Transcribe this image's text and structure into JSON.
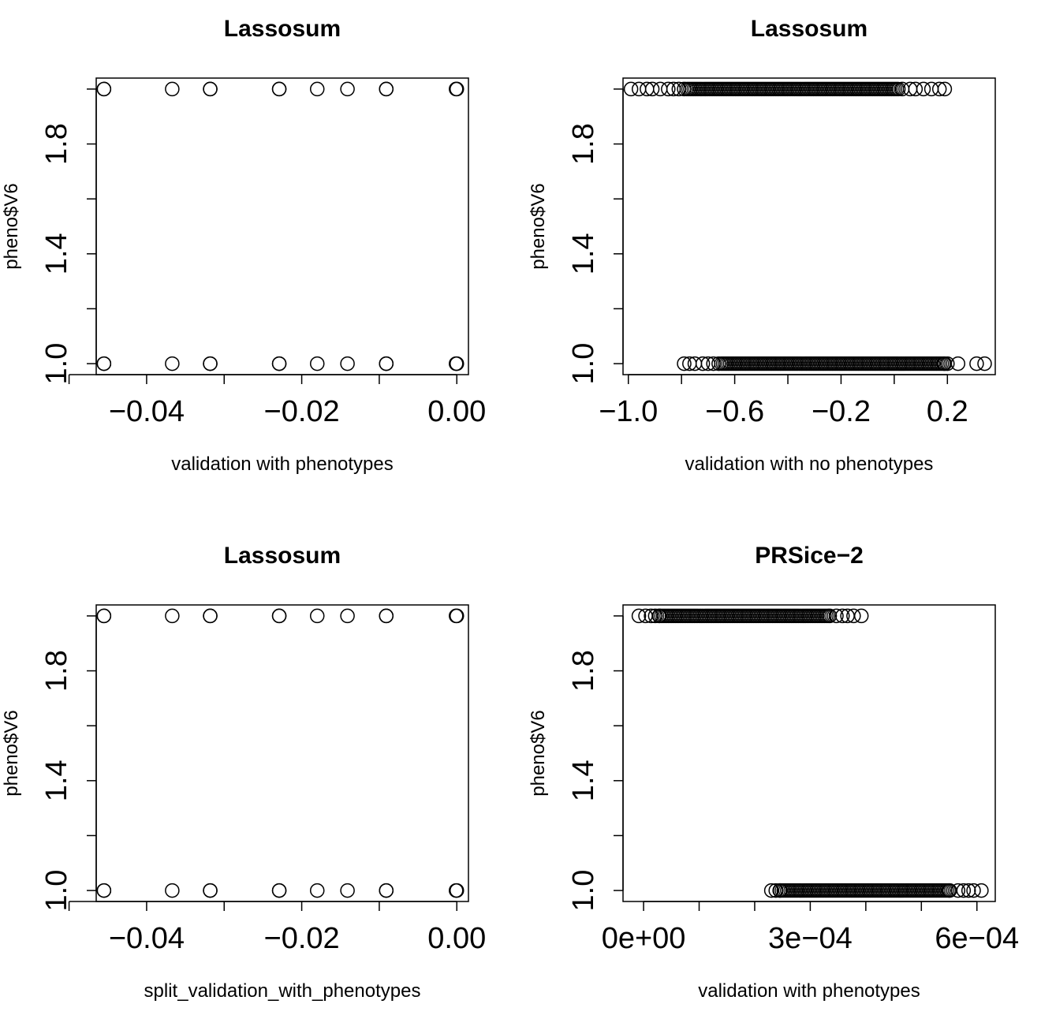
{
  "chart_data": [
    {
      "type": "scatter",
      "title": "Lassosum",
      "xlabel": "validation with phenotypes",
      "ylabel": "pheno$V6",
      "xlim": [
        -0.0465,
        0.0015
      ],
      "ylim": [
        0.96,
        2.04
      ],
      "xticks": [
        -0.05,
        -0.04,
        -0.03,
        -0.02,
        -0.01,
        0.0
      ],
      "xtick_labels": [
        "",
        "−0.04",
        "",
        "−0.02",
        "",
        "0.00"
      ],
      "yticks": [
        1.0,
        1.2,
        1.4,
        1.6,
        1.8,
        2.0
      ],
      "ytick_labels": [
        "1.0",
        "",
        "1.4",
        "",
        "1.8",
        ""
      ],
      "grid": false,
      "series": [
        {
          "points": [
            {
              "x": -0.0455,
              "y": 2
            },
            {
              "x": -0.0455,
              "y": 2
            },
            {
              "x": -0.0367,
              "y": 2
            },
            {
              "x": -0.0318,
              "y": 2
            },
            {
              "x": -0.0318,
              "y": 2
            },
            {
              "x": -0.0229,
              "y": 2
            },
            {
              "x": -0.0229,
              "y": 2
            },
            {
              "x": -0.018,
              "y": 2
            },
            {
              "x": -0.0141,
              "y": 2
            },
            {
              "x": -0.0091,
              "y": 2
            },
            {
              "x": -0.0091,
              "y": 2
            },
            {
              "x": -0.0001,
              "y": 2
            },
            {
              "x": 0.0,
              "y": 2
            },
            {
              "x": -0.0455,
              "y": 1
            },
            {
              "x": -0.0455,
              "y": 1
            },
            {
              "x": -0.0367,
              "y": 1
            },
            {
              "x": -0.0318,
              "y": 1
            },
            {
              "x": -0.0318,
              "y": 1
            },
            {
              "x": -0.0229,
              "y": 1
            },
            {
              "x": -0.0229,
              "y": 1
            },
            {
              "x": -0.018,
              "y": 1
            },
            {
              "x": -0.0141,
              "y": 1
            },
            {
              "x": -0.0091,
              "y": 1
            },
            {
              "x": -0.0091,
              "y": 1
            },
            {
              "x": -0.0001,
              "y": 1
            },
            {
              "x": 0.0,
              "y": 1
            }
          ]
        }
      ]
    },
    {
      "type": "scatter",
      "title": "Lassosum",
      "xlabel": "validation with no phenotypes",
      "ylabel": "pheno$V6",
      "xlim": [
        -1.02,
        0.38
      ],
      "ylim": [
        0.96,
        2.04
      ],
      "xticks": [
        -1.0,
        -0.8,
        -0.6,
        -0.4,
        -0.2,
        0.0,
        0.2
      ],
      "xtick_labels": [
        "−1.0",
        "",
        "−0.6",
        "",
        "−0.2",
        "",
        "0.2"
      ],
      "yticks": [
        1.0,
        1.2,
        1.4,
        1.6,
        1.8,
        2.0
      ],
      "ytick_labels": [
        "1.0",
        "",
        "1.4",
        "",
        "1.8",
        ""
      ],
      "grid": false,
      "series": [
        {
          "points": [
            {
              "x": -0.99,
              "y": 2
            },
            {
              "x": -0.96,
              "y": 2
            },
            {
              "x": -0.93,
              "y": 2
            },
            {
              "x": -0.91,
              "y": 2
            },
            {
              "x": -0.88,
              "y": 2
            },
            {
              "x": -0.85,
              "y": 2
            },
            {
              "x": -0.83,
              "y": 2
            },
            {
              "x": -0.81,
              "y": 2
            },
            {
              "x": -0.79,
              "y": 2
            },
            {
              "x": 0.03,
              "y": 2
            },
            {
              "x": 0.06,
              "y": 2
            },
            {
              "x": 0.08,
              "y": 2
            },
            {
              "x": 0.11,
              "y": 2
            },
            {
              "x": 0.14,
              "y": 2
            },
            {
              "x": 0.17,
              "y": 2
            },
            {
              "x": 0.19,
              "y": 2
            },
            {
              "x": -0.79,
              "y": 1
            },
            {
              "x": -0.77,
              "y": 1
            },
            {
              "x": -0.75,
              "y": 1
            },
            {
              "x": -0.72,
              "y": 1
            },
            {
              "x": -0.7,
              "y": 1
            },
            {
              "x": -0.68,
              "y": 1
            },
            {
              "x": -0.66,
              "y": 1
            },
            {
              "x": 0.19,
              "y": 1
            },
            {
              "x": 0.2,
              "y": 1
            },
            {
              "x": 0.24,
              "y": 1
            },
            {
              "x": 0.31,
              "y": 1
            },
            {
              "x": 0.34,
              "y": 1
            }
          ]
        }
      ],
      "dense_runs": [
        {
          "from": -0.78,
          "to": 0.02,
          "y": 2
        },
        {
          "from": -0.65,
          "to": 0.19,
          "y": 1
        }
      ]
    },
    {
      "type": "scatter",
      "title": "Lassosum",
      "xlabel": "split_validation_with_phenotypes",
      "ylabel": "pheno$V6",
      "xlim": [
        -0.0465,
        0.0015
      ],
      "ylim": [
        0.96,
        2.04
      ],
      "xticks": [
        -0.05,
        -0.04,
        -0.03,
        -0.02,
        -0.01,
        0.0
      ],
      "xtick_labels": [
        "",
        "−0.04",
        "",
        "−0.02",
        "",
        "0.00"
      ],
      "yticks": [
        1.0,
        1.2,
        1.4,
        1.6,
        1.8,
        2.0
      ],
      "ytick_labels": [
        "1.0",
        "",
        "1.4",
        "",
        "1.8",
        ""
      ],
      "grid": false,
      "series": [
        {
          "points": [
            {
              "x": -0.0455,
              "y": 2
            },
            {
              "x": -0.0455,
              "y": 2
            },
            {
              "x": -0.0367,
              "y": 2
            },
            {
              "x": -0.0318,
              "y": 2
            },
            {
              "x": -0.0318,
              "y": 2
            },
            {
              "x": -0.0229,
              "y": 2
            },
            {
              "x": -0.0229,
              "y": 2
            },
            {
              "x": -0.018,
              "y": 2
            },
            {
              "x": -0.0141,
              "y": 2
            },
            {
              "x": -0.0091,
              "y": 2
            },
            {
              "x": -0.0091,
              "y": 2
            },
            {
              "x": -0.0001,
              "y": 2
            },
            {
              "x": 0.0,
              "y": 2
            },
            {
              "x": -0.0455,
              "y": 1
            },
            {
              "x": -0.0455,
              "y": 1
            },
            {
              "x": -0.0367,
              "y": 1
            },
            {
              "x": -0.0318,
              "y": 1
            },
            {
              "x": -0.0318,
              "y": 1
            },
            {
              "x": -0.0229,
              "y": 1
            },
            {
              "x": -0.0229,
              "y": 1
            },
            {
              "x": -0.018,
              "y": 1
            },
            {
              "x": -0.0141,
              "y": 1
            },
            {
              "x": -0.0091,
              "y": 1
            },
            {
              "x": -0.0091,
              "y": 1
            },
            {
              "x": -0.0001,
              "y": 1
            },
            {
              "x": 0.0,
              "y": 1
            }
          ]
        }
      ]
    },
    {
      "type": "scatter",
      "title": "PRSice−2",
      "xlabel": "validation with phenotypes",
      "ylabel": "pheno$V6",
      "xlim": [
        -3.7e-05,
        0.000633
      ],
      "ylim": [
        0.96,
        2.04
      ],
      "xticks": [
        0.0,
        0.0001,
        0.0002,
        0.0003,
        0.0004,
        0.0005,
        0.0006
      ],
      "xtick_labels": [
        "0e+00",
        "",
        "",
        "3e−04",
        "",
        "",
        "6e−04"
      ],
      "yticks": [
        1.0,
        1.2,
        1.4,
        1.6,
        1.8,
        2.0
      ],
      "ytick_labels": [
        "1.0",
        "",
        "1.4",
        "",
        "1.8",
        ""
      ],
      "grid": false,
      "series": [
        {
          "points": [
            {
              "x": -8.5e-06,
              "y": 2
            },
            {
              "x": 3.5e-06,
              "y": 2
            },
            {
              "x": 1.35e-05,
              "y": 2
            },
            {
              "x": 2.1e-05,
              "y": 2
            },
            {
              "x": 2.8e-05,
              "y": 2
            },
            {
              "x": 0.000335,
              "y": 2
            },
            {
              "x": 0.000347,
              "y": 2
            },
            {
              "x": 0.000358,
              "y": 2
            },
            {
              "x": 0.000367,
              "y": 2
            },
            {
              "x": 0.000378,
              "y": 2
            },
            {
              "x": 0.000392,
              "y": 2
            },
            {
              "x": 0.00023,
              "y": 1
            },
            {
              "x": 0.000238,
              "y": 1
            },
            {
              "x": 0.000245,
              "y": 1
            },
            {
              "x": 0.000551,
              "y": 1
            },
            {
              "x": 0.000566,
              "y": 1
            },
            {
              "x": 0.000576,
              "y": 1
            },
            {
              "x": 0.000585,
              "y": 1
            },
            {
              "x": 0.000594,
              "y": 1
            },
            {
              "x": 0.000608,
              "y": 1
            }
          ]
        }
      ],
      "dense_runs": [
        {
          "from": 2.9e-05,
          "to": 0.000333,
          "y": 2
        },
        {
          "from": 0.000246,
          "to": 0.00055,
          "y": 1
        }
      ]
    }
  ]
}
